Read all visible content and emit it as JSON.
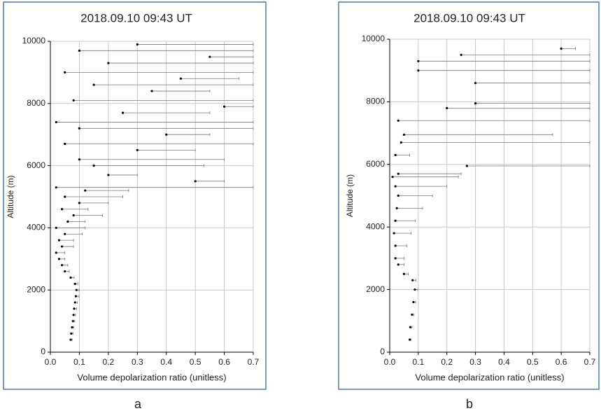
{
  "chart_data": [
    {
      "type": "scatter",
      "title": "2018.09.10 09:43 UT",
      "panel_label": "a",
      "xlabel": "Volume depolarization ratio  (unitless)",
      "ylabel": "Altitude (m)",
      "color": "#000000",
      "grid": true,
      "xlim": [
        0,
        0.7
      ],
      "ylim": [
        0,
        10000
      ],
      "xticks": [
        {
          "value": 0,
          "label": "0.0"
        },
        {
          "value": 0.1,
          "label": "0.1"
        },
        {
          "value": 0.2,
          "label": "0.2"
        },
        {
          "value": 0.3,
          "label": "0.3"
        },
        {
          "value": 0.4,
          "label": "0.4"
        },
        {
          "value": 0.5,
          "label": "0.5"
        },
        {
          "value": 0.6,
          "label": "0.6"
        },
        {
          "value": 0.7,
          "label": "0.7"
        }
      ],
      "yticks": [
        0,
        2000,
        4000,
        6000,
        8000,
        10000
      ],
      "x": [
        0.07,
        0.072,
        0.075,
        0.078,
        0.08,
        0.082,
        0.085,
        0.088,
        0.09,
        0.085,
        0.07,
        0.05,
        0.04,
        0.03,
        0.02,
        0.04,
        0.03,
        0.05,
        0.02,
        0.06,
        0.08,
        0.04,
        0.1,
        0.05,
        0.12,
        0.02,
        0.5,
        0.2,
        0.15,
        0.1,
        0.3,
        0.05,
        0.4,
        0.1,
        0.02,
        0.25,
        0.6,
        0.08,
        0.35,
        0.15,
        0.45,
        0.05,
        0.2,
        0.55,
        0.1,
        0.3
      ],
      "y": [
        400,
        600,
        800,
        1000,
        1200,
        1400,
        1600,
        1800,
        2000,
        2200,
        2400,
        2600,
        2800,
        3000,
        3200,
        3400,
        3600,
        3800,
        4000,
        4200,
        4400,
        4600,
        4800,
        5000,
        5200,
        5300,
        5500,
        5700,
        6000,
        6200,
        6500,
        6700,
        7000,
        7200,
        7400,
        7700,
        7900,
        8100,
        8400,
        8600,
        8800,
        9000,
        9300,
        9500,
        9700,
        9900
      ],
      "x_error": [
        0.005,
        0.006,
        0.006,
        0.006,
        0.007,
        0.008,
        0.008,
        0.009,
        0.009,
        0.01,
        0.012,
        0.015,
        0.02,
        0.02,
        0.03,
        0.04,
        0.05,
        0.06,
        0.1,
        0.06,
        0.1,
        0.09,
        0.1,
        0.2,
        0.15,
        0.68,
        0.1,
        0.1,
        0.38,
        0.5,
        0.2,
        0.65,
        0.15,
        0.6,
        0.68,
        0.3,
        0.1,
        0.62,
        0.2,
        0.55,
        0.2,
        0.65,
        0.5,
        0.15,
        0.6,
        0.4
      ]
    },
    {
      "type": "scatter",
      "title": "2018.09.10 09:43 UT",
      "panel_label": "b",
      "xlabel": "Volume depolarization ratio  (unitless)",
      "ylabel": "Altitude (m)",
      "color": "#000000",
      "grid": true,
      "xlim": [
        0,
        0.7
      ],
      "ylim": [
        0,
        10000
      ],
      "xticks": [
        {
          "value": 0,
          "label": "0.0"
        },
        {
          "value": 0.1,
          "label": "0.1"
        },
        {
          "value": 0.2,
          "label": "0.2"
        },
        {
          "value": 0.3,
          "label": "0.3"
        },
        {
          "value": 0.4,
          "label": "0.4"
        },
        {
          "value": 0.5,
          "label": "0.5"
        },
        {
          "value": 0.6,
          "label": "0.6"
        },
        {
          "value": 0.7,
          "label": "0.7"
        }
      ],
      "yticks": [
        0,
        2000,
        4000,
        6000,
        8000,
        10000
      ],
      "x": [
        0.07,
        0.072,
        0.078,
        0.083,
        0.088,
        0.08,
        0.05,
        0.03,
        0.02,
        0.02,
        0.015,
        0.02,
        0.025,
        0.03,
        0.02,
        0.01,
        0.03,
        0.27,
        0.02,
        0.04,
        0.05,
        0.03,
        0.2,
        0.3,
        0.3,
        0.1,
        0.1,
        0.25,
        0.6
      ],
      "y": [
        400,
        800,
        1200,
        1600,
        2000,
        2300,
        2500,
        2800,
        3000,
        3400,
        3800,
        4200,
        4600,
        5000,
        5300,
        5600,
        5700,
        5950,
        6300,
        6700,
        6950,
        7400,
        7800,
        7950,
        8600,
        9000,
        9300,
        9500,
        9700
      ],
      "x_error": [
        0.005,
        0.006,
        0.007,
        0.008,
        0.01,
        0.012,
        0.015,
        0.02,
        0.03,
        0.04,
        0.06,
        0.07,
        0.09,
        0.12,
        0.18,
        0.23,
        0.22,
        0.43,
        0.05,
        0.66,
        0.52,
        0.67,
        0.5,
        0.4,
        0.4,
        0.6,
        0.6,
        0.45,
        0.05
      ]
    }
  ]
}
